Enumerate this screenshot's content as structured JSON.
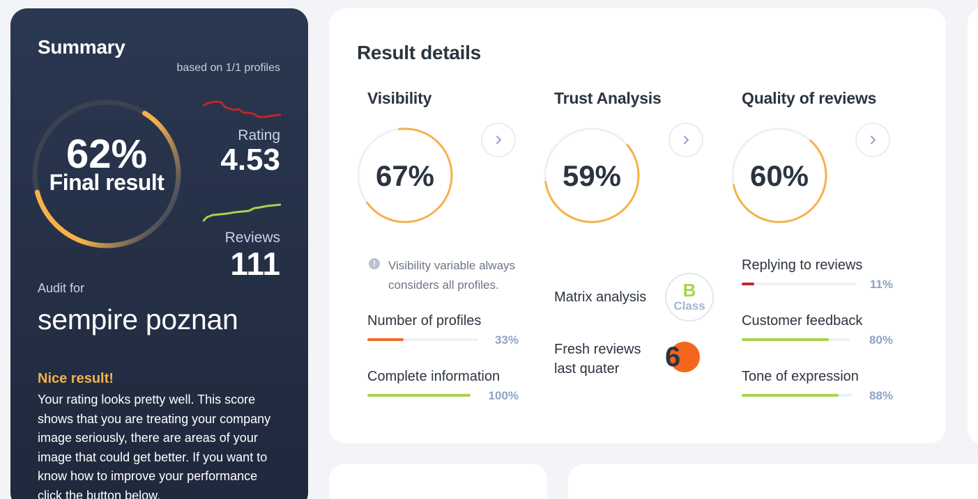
{
  "summary": {
    "title": "Summary",
    "based_on": "based on 1/1 profiles",
    "final_score": "62%",
    "final_fraction": 0.62,
    "final_label": "Final result",
    "rating_label": "Rating",
    "rating_value": "4.53",
    "reviews_label": "Reviews",
    "reviews_value": "111",
    "audit_label": "Audit for",
    "audit_name": "sempire poznan",
    "result_heading": "Nice result!",
    "result_text": "Your rating looks pretty well. This score shows that you are treating your company image seriously, there are areas of your image that could get better. If you want to know how to improve your performance click the button below.",
    "colors": {
      "ring": "#f6b14a",
      "rating_line": "#c0262b",
      "reviews_line": "#a6d44b"
    }
  },
  "details": {
    "title": "Result details",
    "columns": [
      {
        "title": "Visibility",
        "score": "67%",
        "fraction": 0.67
      },
      {
        "title": "Trust Analysis",
        "score": "59%",
        "fraction": 0.59
      },
      {
        "title": "Quality of reviews",
        "score": "60%",
        "fraction": 0.6
      }
    ],
    "visibility_note": "Visibility variable always considers all profiles.",
    "visibility_bars": [
      {
        "label": "Number of profiles",
        "pct": "33%",
        "fraction": 0.33,
        "color": "#ef6b2b"
      },
      {
        "label": "Complete information",
        "pct": "100%",
        "fraction": 1.0,
        "color": "#a6d44b"
      }
    ],
    "matrix_label": "Matrix analysis",
    "class_letter": "B",
    "class_word": "Class",
    "fresh_label": "Fresh reviews last quater",
    "fresh_value": "6",
    "quality_bars": [
      {
        "label": "Replying to reviews",
        "pct": "11%",
        "fraction": 0.11,
        "color": "#c0262b"
      },
      {
        "label": "Customer feedback",
        "pct": "80%",
        "fraction": 0.8,
        "color": "#a6d44b"
      },
      {
        "label": "Tone of expression",
        "pct": "88%",
        "fraction": 0.88,
        "color": "#a6d44b"
      }
    ],
    "icons": [
      "chevron-right-icon",
      "info-icon"
    ]
  }
}
